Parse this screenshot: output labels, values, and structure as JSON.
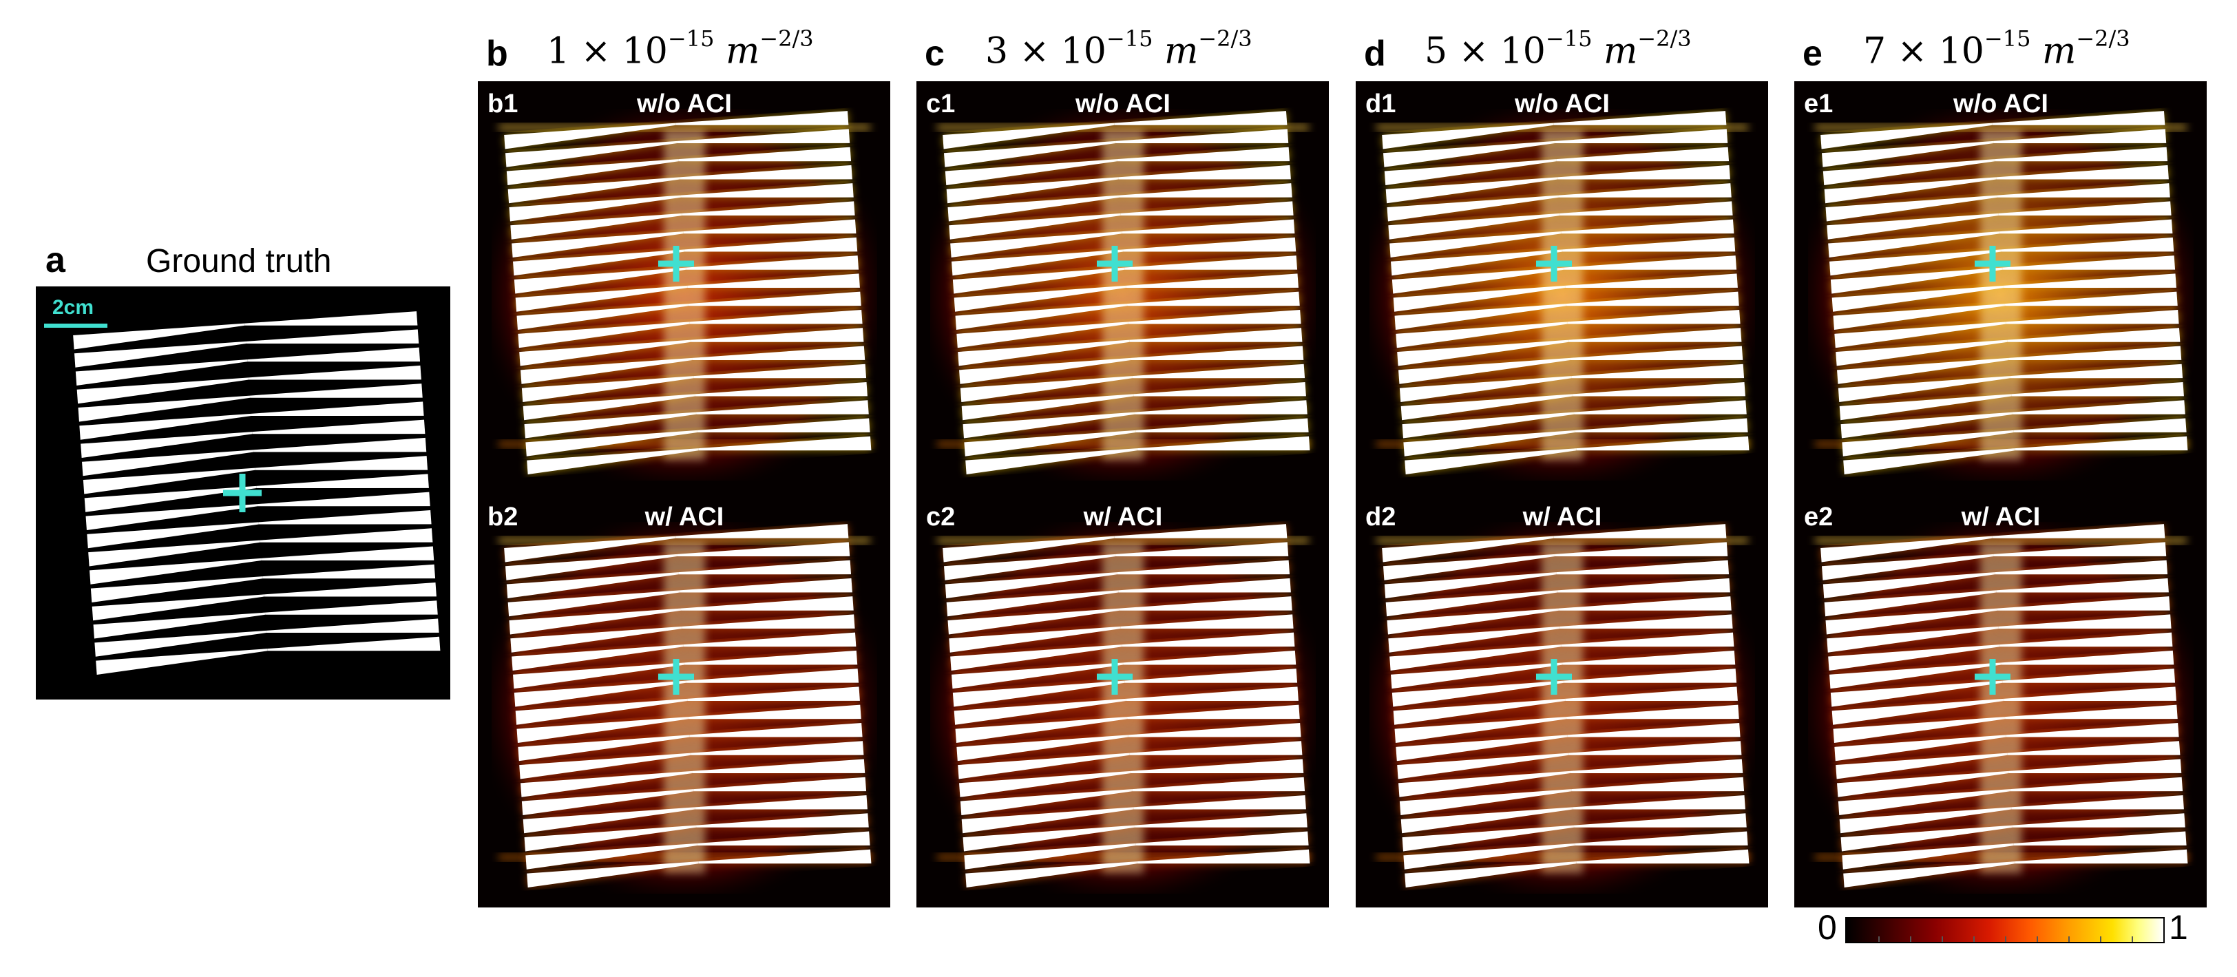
{
  "panel_a": {
    "letter": "a",
    "title": "Ground truth",
    "scalebar": "2cm"
  },
  "columns": [
    {
      "letter": "b",
      "turbulence": {
        "coef": "1",
        "exp": "−15",
        "unit": "m",
        "unit_exp": "−2/3"
      },
      "top": {
        "label": "b1",
        "title": "w/o ACI"
      },
      "bottom": {
        "label": "b2",
        "title": "w/ ACI"
      }
    },
    {
      "letter": "c",
      "turbulence": {
        "coef": "3",
        "exp": "−15",
        "unit": "m",
        "unit_exp": "−2/3"
      },
      "top": {
        "label": "c1",
        "title": "w/o ACI"
      },
      "bottom": {
        "label": "c2",
        "title": "w/ ACI"
      }
    },
    {
      "letter": "d",
      "turbulence": {
        "coef": "5",
        "exp": "−15",
        "unit": "m",
        "unit_exp": "−2/3"
      },
      "top": {
        "label": "d1",
        "title": "w/o ACI"
      },
      "bottom": {
        "label": "d2",
        "title": "w/ ACI"
      }
    },
    {
      "letter": "e",
      "turbulence": {
        "coef": "7",
        "exp": "−15",
        "unit": "m",
        "unit_exp": "−2/3"
      },
      "top": {
        "label": "e1",
        "title": "w/o ACI"
      },
      "bottom": {
        "label": "e2",
        "title": "w/ ACI"
      }
    }
  ],
  "colorbar": {
    "min": "0",
    "max": "1",
    "colormap": "hot"
  },
  "colors": {
    "crosshair": "#40e0d0",
    "stripes": "#ffffff",
    "background": "#000000"
  }
}
